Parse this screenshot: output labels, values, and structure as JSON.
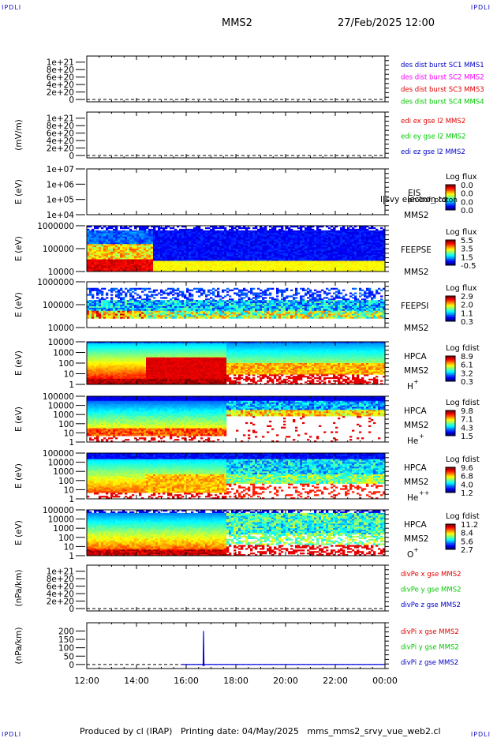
{
  "header": {
    "corner_left": "IPDLI",
    "corner_right": "IPDLI",
    "spacecraft": "MMS2",
    "date_time": "27/Feb/2025 12:00"
  },
  "footer": {
    "text": "Produced by cl (IRAP)   Printing date: 04/May/2025   mms_mms2_srvy_vue_web2.cl",
    "corner_left": "IPDLI",
    "corner_right": "IPDLI"
  },
  "colors": {
    "mms1": "#0000c8",
    "mms2": "#ff00ff",
    "mms3": "#e00000",
    "mms4": "#00c800",
    "x": "#e00000",
    "y": "#00c800",
    "z": "#0000c8",
    "trace": "#0000e0"
  },
  "chart_data": [
    {
      "type": "line",
      "id": "des_dist",
      "ylabel": "",
      "ytick_labels": [
        "1e+21",
        "8e+20",
        "6e+20",
        "4e+20",
        "2e+20",
        "0"
      ],
      "ylim": [
        0,
        1.1e+21
      ],
      "zero_line": "dashed",
      "legend_placement": "right",
      "legend": [
        "des dist burst SC1 MMS1",
        "des dist burst SC2 MMS2",
        "des dist burst SC3 MMS3",
        "des dist burst SC4 MMS4"
      ],
      "series": []
    },
    {
      "type": "line",
      "id": "edi",
      "ylabel": "(mV/m)",
      "ytick_labels": [
        "1e+21",
        "8e+20",
        "6e+20",
        "4e+20",
        "2e+20",
        "0"
      ],
      "ylim": [
        0,
        1.1e+21
      ],
      "zero_line": "dashed",
      "legend_placement": "right",
      "legend": [
        "edi ex gse l2 MMS2",
        "edi ey gse l2 MMS2",
        "edi ez gse l2 MMS2"
      ],
      "series": []
    },
    {
      "type": "heatmap",
      "id": "eis",
      "ylabel": "E (eV)",
      "scale": "log",
      "ytick_labels": [
        "1e+07",
        "1e+06",
        "1e+05",
        "1e+04"
      ],
      "instrument": [
        "EIS",
        "MMS2"
      ],
      "overlay_text": "phxtof_proton",
      "overlay_text_right": "l|svy electron to",
      "colorbar": {
        "title": "Log flux",
        "ticks": [
          "0.0",
          "0.0",
          "0.0",
          "0.0"
        ]
      },
      "pattern": "empty"
    },
    {
      "type": "heatmap",
      "id": "feeps_e",
      "ylabel": "E (eV)",
      "scale": "log",
      "ytick_labels": [
        "1000000",
        "100000",
        "10000"
      ],
      "instrument": [
        "FEEPSE",
        "MMS2"
      ],
      "colorbar": {
        "title": "Log flux",
        "ticks": [
          "5.5",
          "3.5",
          "1.5",
          "-0.5"
        ]
      },
      "pattern": "feeps_e"
    },
    {
      "type": "heatmap",
      "id": "feeps_i",
      "ylabel": "E (eV)",
      "scale": "log",
      "ytick_labels": [
        "1000000",
        "100000",
        "10000"
      ],
      "instrument": [
        "FEEPSI",
        "MMS2"
      ],
      "colorbar": {
        "title": "Log flux",
        "ticks": [
          "2.9",
          "2.0",
          "1.1",
          "0.3"
        ]
      },
      "pattern": "feeps_i"
    },
    {
      "type": "heatmap",
      "id": "hpca_h",
      "ylabel": "E (eV)",
      "scale": "log",
      "ytick_labels": [
        "10000",
        "1000",
        "100",
        "10",
        "1"
      ],
      "instrument": [
        "HPCA",
        "MMS2"
      ],
      "species": "H",
      "species_sup": "+",
      "colorbar": {
        "title": "Log fdist",
        "ticks": [
          "8.9",
          "6.1",
          "3.2",
          "0.3"
        ]
      },
      "pattern": "hpca_h"
    },
    {
      "type": "heatmap",
      "id": "hpca_he",
      "ylabel": "E (eV)",
      "scale": "log",
      "ytick_labels": [
        "100000",
        "10000",
        "1000",
        "100",
        "10",
        "1"
      ],
      "instrument": [
        "HPCA",
        "MMS2"
      ],
      "species": "He",
      "species_sup": "+",
      "colorbar": {
        "title": "Log fdist",
        "ticks": [
          "9.8",
          "7.1",
          "4.3",
          "1.5"
        ]
      },
      "pattern": "hpca_he"
    },
    {
      "type": "heatmap",
      "id": "hpca_he2",
      "ylabel": "E (eV)",
      "scale": "log",
      "ytick_labels": [
        "100000",
        "10000",
        "1000",
        "100",
        "10",
        "1"
      ],
      "instrument": [
        "HPCA",
        "MMS2"
      ],
      "species": "He",
      "species_sup": "++",
      "colorbar": {
        "title": "Log fdist",
        "ticks": [
          "9.6",
          "6.8",
          "4.0",
          "1.2"
        ]
      },
      "pattern": "hpca_he2"
    },
    {
      "type": "heatmap",
      "id": "hpca_o",
      "ylabel": "E (eV)",
      "scale": "log",
      "ytick_labels": [
        "100000",
        "10000",
        "1000",
        "100",
        "10",
        "1"
      ],
      "instrument": [
        "HPCA",
        "MMS2"
      ],
      "species": "O",
      "species_sup": "+",
      "colorbar": {
        "title": "Log fdist",
        "ticks": [
          "11.2",
          "8.4",
          "5.6",
          "2.7"
        ]
      },
      "pattern": "hpca_o"
    },
    {
      "type": "line",
      "id": "divpe",
      "ylabel": "(nPa/km)",
      "ytick_labels": [
        "1e+21",
        "8e+20",
        "6e+20",
        "4e+20",
        "2e+20",
        "0"
      ],
      "ylim": [
        0,
        1.1e+21
      ],
      "zero_line": "dashed",
      "legend_placement": "right",
      "legend": [
        "divPe x gse MMS2",
        "divPe y gse MMS2",
        "divPe z gse MMS2"
      ],
      "series": []
    },
    {
      "type": "line",
      "id": "divpi",
      "ylabel": "(nPa/km)",
      "ytick_labels": [
        "200",
        "150",
        "100",
        "50",
        "0"
      ],
      "ylim": [
        -10,
        235
      ],
      "zero_line": "dashed",
      "legend_placement": "right",
      "legend": [
        "divPi x gse MMS2",
        "divPi y gse MMS2",
        "divPi z gse MMS2"
      ],
      "series": [
        {
          "name": "divPi z gse MMS2",
          "x": [
            "15:50",
            "16:39",
            "16:41",
            "16:42",
            "16:43",
            "16:44",
            "16:46",
            "24:00"
          ],
          "y": [
            0,
            0,
            -5,
            200,
            -8,
            0,
            0,
            0
          ]
        }
      ]
    }
  ],
  "x_axis": {
    "ticks": [
      "12:00",
      "14:00",
      "16:00",
      "18:00",
      "20:00",
      "22:00",
      "00:00"
    ],
    "range_hours": [
      12,
      24
    ]
  }
}
